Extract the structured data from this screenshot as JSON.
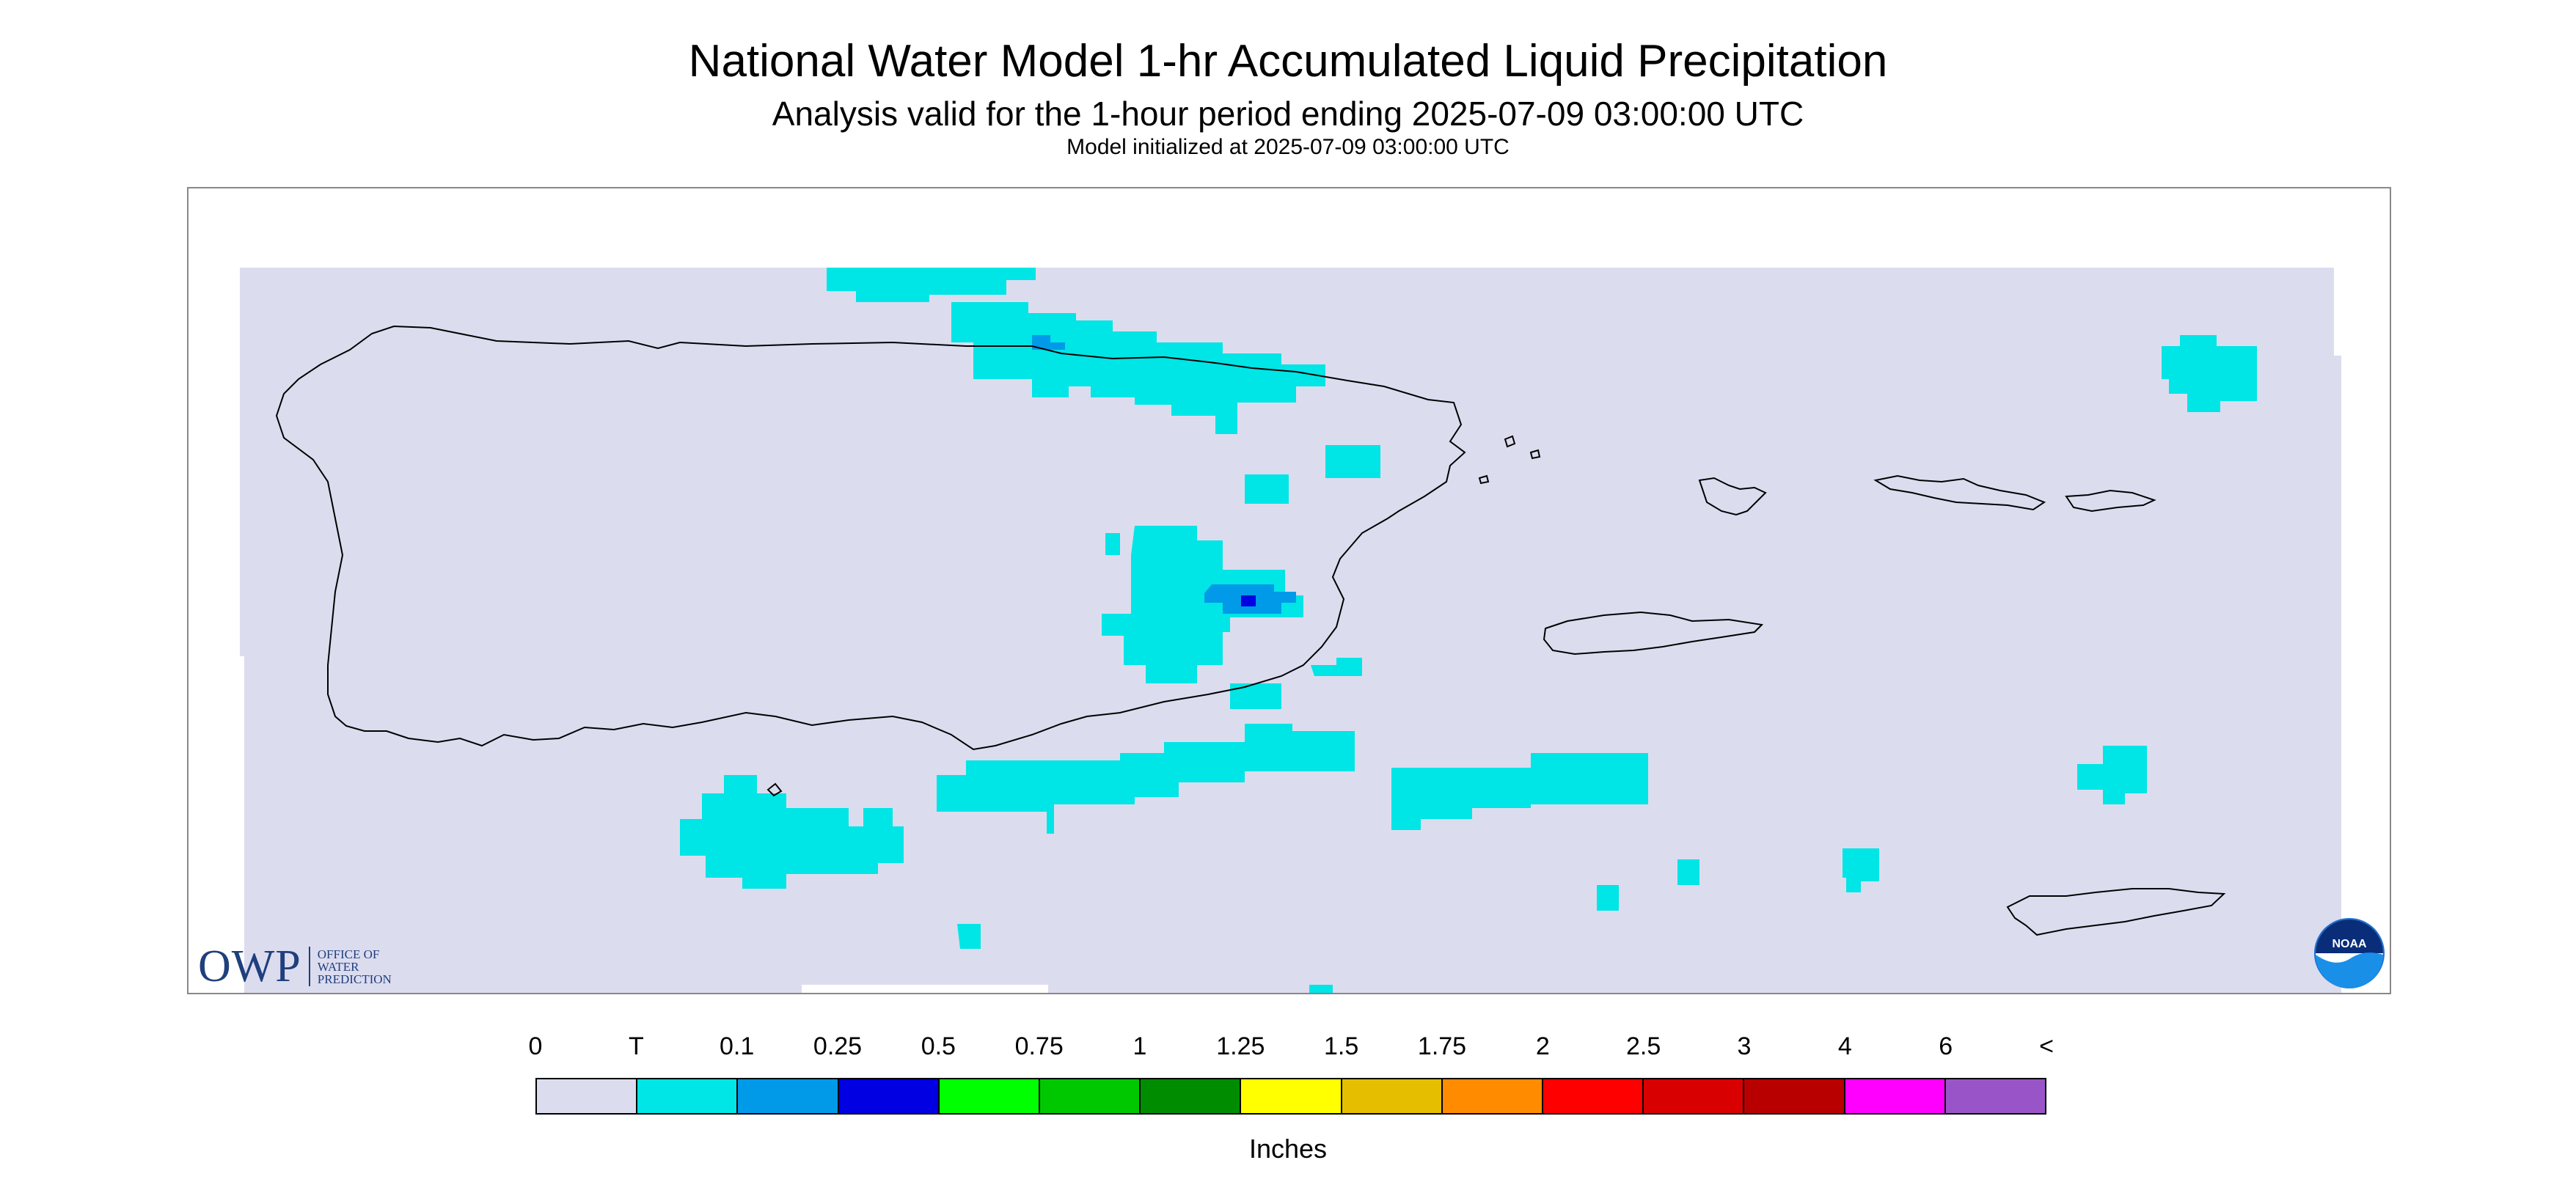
{
  "title": "National Water Model 1-hr Accumulated Liquid Precipitation",
  "subtitle": "Analysis valid for the 1-hour period ending 2025-07-09 03:00:00 UTC",
  "init_line": "Model initialized at 2025-07-09 03:00:00 UTC",
  "map": {
    "region": "Puerto Rico and U.S. Virgin Islands",
    "background_color": "#dcdcef",
    "precip_colors": {
      "T": "#00e5e5",
      "0.1": "#009ae8",
      "0.25": "#0000e3"
    }
  },
  "logos": {
    "owp_mark": "OWP",
    "owp_text": "OFFICE OF\nWATER\nPREDICTION",
    "noaa_text": "NOAA"
  },
  "legend": {
    "labels": [
      "0",
      "T",
      "0.1",
      "0.25",
      "0.5",
      "0.75",
      "1",
      "1.25",
      "1.5",
      "1.75",
      "2",
      "2.5",
      "3",
      "4",
      "6",
      "<"
    ],
    "colors": [
      "#dcdcef",
      "#00e5e5",
      "#009ae8",
      "#0000e3",
      "#00ff00",
      "#00c800",
      "#008c00",
      "#ffff00",
      "#e6be00",
      "#ff8c00",
      "#ff0000",
      "#d80000",
      "#b80000",
      "#ff00ff",
      "#9955c8"
    ],
    "units": "Inches"
  }
}
